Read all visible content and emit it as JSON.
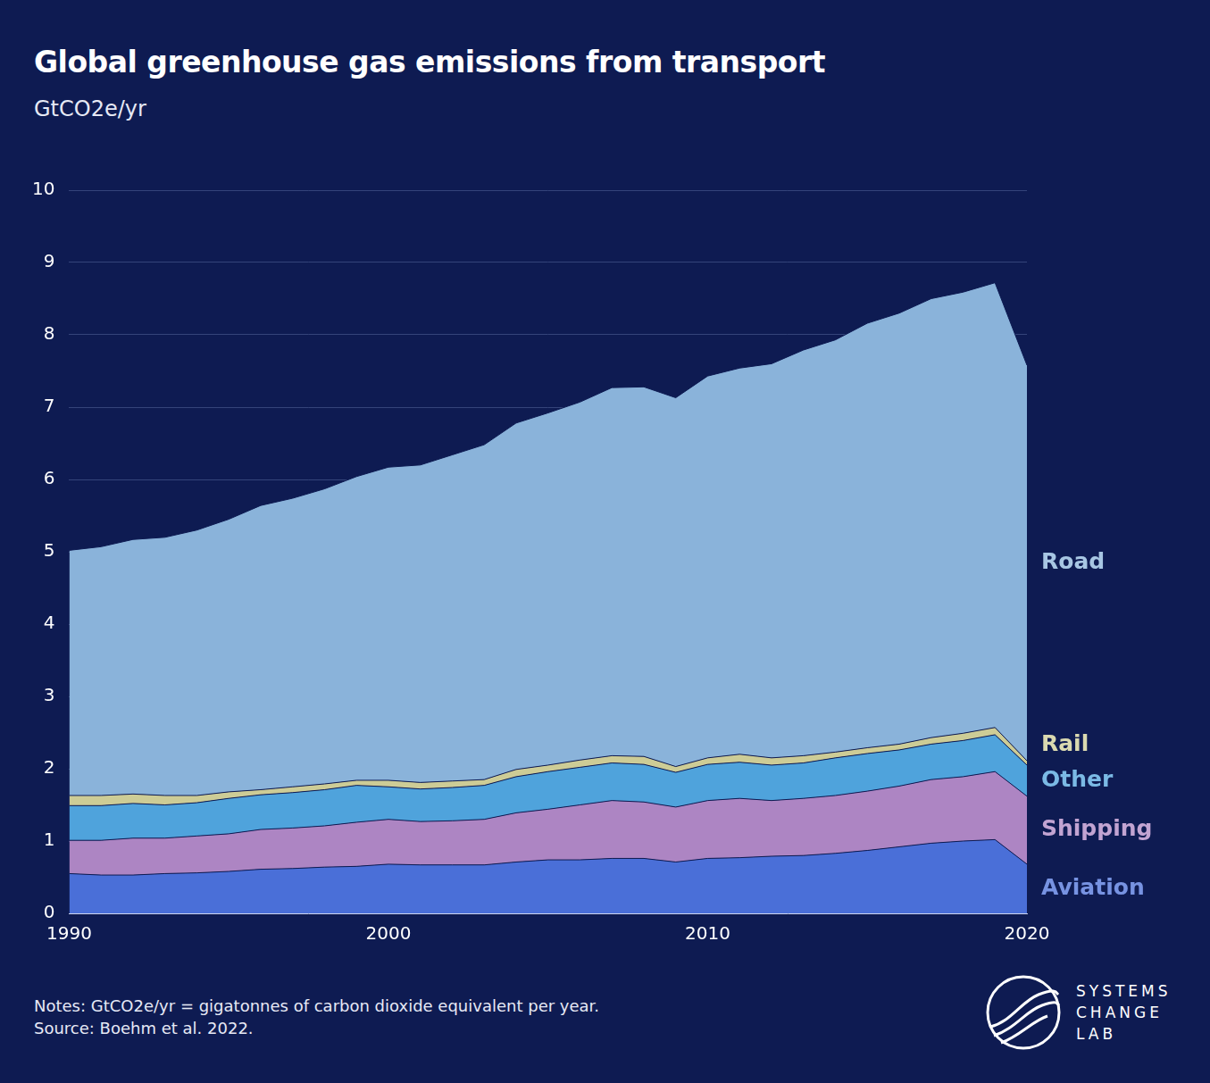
{
  "chart_data": {
    "type": "area",
    "title": "Global greenhouse gas emissions from transport",
    "subtitle": "GtCO2e/yr",
    "notes": "Notes: GtCO2e/yr = gigatonnes of carbon dioxide equivalent per year.",
    "source": "Source: Boehm et al. 2022.",
    "logo_text": [
      "SYSTEMS",
      "CHANGE",
      "LAB"
    ],
    "stacked": true,
    "grid": true,
    "x": [
      1990,
      1991,
      1992,
      1993,
      1994,
      1995,
      1996,
      1997,
      1998,
      1999,
      2000,
      2001,
      2002,
      2003,
      2004,
      2005,
      2006,
      2007,
      2008,
      2009,
      2010,
      2011,
      2012,
      2013,
      2014,
      2015,
      2016,
      2017,
      2018,
      2019,
      2020
    ],
    "xlim": [
      1990,
      2020
    ],
    "xticks": [
      1990,
      2000,
      2010,
      2020
    ],
    "ylim": [
      0,
      10
    ],
    "yticks": [
      0,
      1,
      2,
      3,
      4,
      5,
      6,
      7,
      8,
      9,
      10
    ],
    "series": [
      {
        "name": "Aviation",
        "color": "#4a6fd8",
        "values": [
          0.55,
          0.53,
          0.53,
          0.55,
          0.56,
          0.58,
          0.61,
          0.62,
          0.64,
          0.65,
          0.68,
          0.67,
          0.67,
          0.67,
          0.71,
          0.74,
          0.74,
          0.76,
          0.76,
          0.71,
          0.76,
          0.77,
          0.79,
          0.8,
          0.83,
          0.87,
          0.92,
          0.97,
          1.0,
          1.02,
          0.68
        ]
      },
      {
        "name": "Shipping",
        "color": "#ad85c3",
        "values": [
          0.46,
          0.48,
          0.51,
          0.49,
          0.51,
          0.52,
          0.55,
          0.56,
          0.57,
          0.61,
          0.62,
          0.6,
          0.61,
          0.63,
          0.68,
          0.7,
          0.76,
          0.8,
          0.78,
          0.76,
          0.8,
          0.82,
          0.77,
          0.79,
          0.8,
          0.82,
          0.84,
          0.88,
          0.89,
          0.94,
          0.94
        ]
      },
      {
        "name": "Other",
        "color": "#4fa3dc",
        "values": [
          0.48,
          0.48,
          0.48,
          0.46,
          0.46,
          0.49,
          0.48,
          0.49,
          0.5,
          0.51,
          0.45,
          0.45,
          0.46,
          0.47,
          0.5,
          0.52,
          0.52,
          0.52,
          0.52,
          0.48,
          0.5,
          0.5,
          0.49,
          0.49,
          0.52,
          0.52,
          0.5,
          0.49,
          0.5,
          0.51,
          0.43
        ]
      },
      {
        "name": "Rail",
        "color": "#cdcc96",
        "values": [
          0.14,
          0.14,
          0.13,
          0.13,
          0.1,
          0.09,
          0.07,
          0.08,
          0.08,
          0.07,
          0.09,
          0.09,
          0.09,
          0.08,
          0.1,
          0.09,
          0.1,
          0.1,
          0.11,
          0.08,
          0.09,
          0.11,
          0.1,
          0.1,
          0.08,
          0.08,
          0.08,
          0.09,
          0.1,
          0.1,
          0.06
        ]
      },
      {
        "name": "Road",
        "color": "#8ab3da",
        "values": [
          3.39,
          3.44,
          3.52,
          3.57,
          3.67,
          3.77,
          3.93,
          3.99,
          4.08,
          4.2,
          4.33,
          4.39,
          4.51,
          4.63,
          4.79,
          4.87,
          4.95,
          5.09,
          5.11,
          5.1,
          5.28,
          5.34,
          5.45,
          5.61,
          5.7,
          5.87,
          5.96,
          6.07,
          6.1,
          6.15,
          5.47
        ]
      }
    ]
  }
}
